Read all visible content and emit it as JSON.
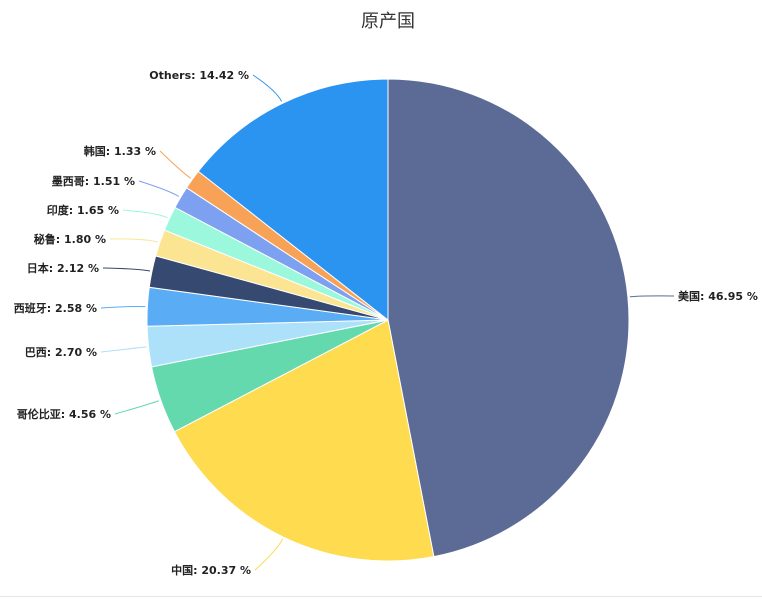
{
  "chart_data": {
    "type": "pie",
    "title": "原产国",
    "slices": [
      {
        "label": "美国: 46.95 %",
        "value": 46.95,
        "color": "#5b6b96"
      },
      {
        "label": "中国: 20.37 %",
        "value": 20.37,
        "color": "#fedb4f"
      },
      {
        "label": "哥伦比亚: 4.56 %",
        "value": 4.56,
        "color": "#63d9ad"
      },
      {
        "label": "巴西: 2.70 %",
        "value": 2.7,
        "color": "#ade0f9"
      },
      {
        "label": "西班牙: 2.58 %",
        "value": 2.58,
        "color": "#5aacf4"
      },
      {
        "label": "日本: 2.12 %",
        "value": 2.12,
        "color": "#364970"
      },
      {
        "label": "秘鲁: 1.80 %",
        "value": 1.8,
        "color": "#fbe593"
      },
      {
        "label": "印度: 1.65 %",
        "value": 1.65,
        "color": "#9cf8dd"
      },
      {
        "label": "墨西哥: 1.51 %",
        "value": 1.51,
        "color": "#7da0f0"
      },
      {
        "label": "韩国: 1.33 %",
        "value": 1.33,
        "color": "#f8a258"
      },
      {
        "label": "Others: 14.42 %",
        "value": 14.42,
        "color": "#2b93f0"
      }
    ]
  }
}
